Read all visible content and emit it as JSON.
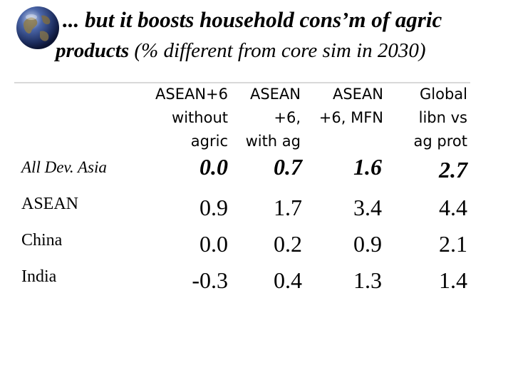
{
  "title": {
    "line1": "... but it boosts household cons’m of agric",
    "line2_bold": "products",
    "line2_rest": " (% different from core sim in 2030)"
  },
  "columns": [
    [
      "ASEAN+6",
      "without",
      "agric"
    ],
    [
      "ASEAN",
      "+6,",
      "with ag"
    ],
    [
      "ASEAN",
      "+6, MFN",
      ""
    ],
    [
      "Global",
      "libn vs",
      "ag prot"
    ]
  ],
  "rows": [
    {
      "label": "All Dev. Asia",
      "values": [
        "0.0",
        "0.7",
        "1.6",
        "2.7"
      ]
    },
    {
      "label": "ASEAN",
      "values": [
        "0.9",
        "1.7",
        "3.4",
        "4.4"
      ]
    },
    {
      "label": "China",
      "values": [
        "0.0",
        "0.2",
        "0.9",
        "2.1"
      ]
    },
    {
      "label": "India",
      "values": [
        "-0.3",
        "0.4",
        "1.3",
        "1.4"
      ]
    }
  ]
}
